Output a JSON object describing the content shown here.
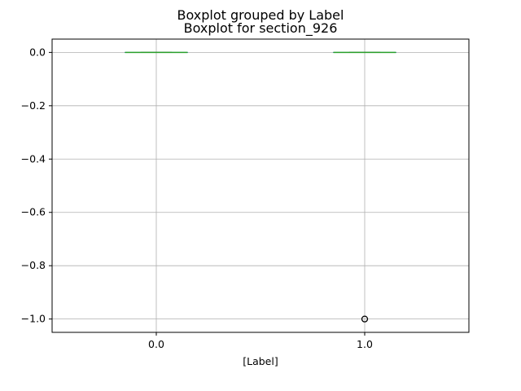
{
  "chart_data": {
    "type": "box",
    "suptitle": "Boxplot grouped by Label",
    "title": "Boxplot for section_926",
    "xlabel": "[Label]",
    "ylabel": "",
    "categories": [
      "0.0",
      "1.0"
    ],
    "ylim": [
      -1.05,
      0.05
    ],
    "yticks": [
      0.0,
      -0.2,
      -0.4,
      -0.6,
      -0.8,
      -1.0
    ],
    "ytick_labels": [
      "0.0",
      "−0.2",
      "−0.4",
      "−0.6",
      "−0.8",
      "−1.0"
    ],
    "grid": true,
    "boxes": [
      {
        "category": "0.0",
        "q1": 0.0,
        "median": 0.0,
        "q3": 0.0,
        "whisker_low": 0.0,
        "whisker_high": 0.0,
        "outliers": []
      },
      {
        "category": "1.0",
        "q1": 0.0,
        "median": 0.0,
        "q3": 0.0,
        "whisker_low": 0.0,
        "whisker_high": 0.0,
        "outliers": [
          -1.0
        ]
      }
    ],
    "colors": {
      "box": "#1f77b4",
      "median": "#2ca02c",
      "grid": "#b0b0b0",
      "outlier": "#000000"
    }
  }
}
